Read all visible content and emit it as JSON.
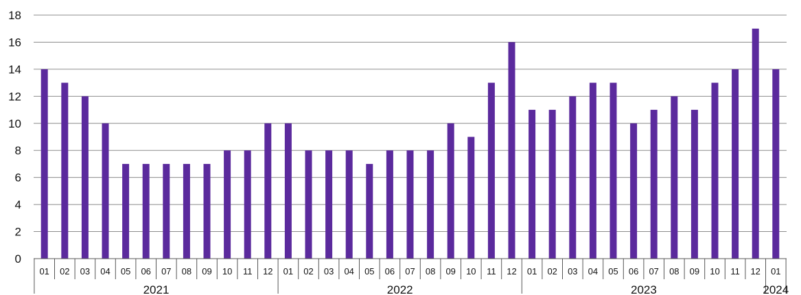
{
  "chart_data": {
    "type": "bar",
    "title": "",
    "xlabel": "",
    "ylabel": "",
    "ylim": [
      0,
      18
    ],
    "yticks": [
      0,
      2,
      4,
      6,
      8,
      10,
      12,
      14,
      16,
      18
    ],
    "grid": "horizontal",
    "legend": "none",
    "colors": {
      "bar": "#5b2a9d",
      "grid": "#8c8c8c",
      "axis": "#555555"
    },
    "x": [
      {
        "year": "2021",
        "month": "01",
        "value": 14
      },
      {
        "year": "2021",
        "month": "02",
        "value": 13
      },
      {
        "year": "2021",
        "month": "03",
        "value": 12
      },
      {
        "year": "2021",
        "month": "04",
        "value": 10
      },
      {
        "year": "2021",
        "month": "05",
        "value": 7
      },
      {
        "year": "2021",
        "month": "06",
        "value": 7
      },
      {
        "year": "2021",
        "month": "07",
        "value": 7
      },
      {
        "year": "2021",
        "month": "08",
        "value": 7
      },
      {
        "year": "2021",
        "month": "09",
        "value": 7
      },
      {
        "year": "2021",
        "month": "10",
        "value": 8
      },
      {
        "year": "2021",
        "month": "11",
        "value": 8
      },
      {
        "year": "2021",
        "month": "12",
        "value": 10
      },
      {
        "year": "2022",
        "month": "01",
        "value": 10
      },
      {
        "year": "2022",
        "month": "02",
        "value": 8
      },
      {
        "year": "2022",
        "month": "03",
        "value": 8
      },
      {
        "year": "2022",
        "month": "04",
        "value": 8
      },
      {
        "year": "2022",
        "month": "05",
        "value": 7
      },
      {
        "year": "2022",
        "month": "06",
        "value": 8
      },
      {
        "year": "2022",
        "month": "07",
        "value": 8
      },
      {
        "year": "2022",
        "month": "08",
        "value": 8
      },
      {
        "year": "2022",
        "month": "09",
        "value": 10
      },
      {
        "year": "2022",
        "month": "10",
        "value": 9
      },
      {
        "year": "2022",
        "month": "11",
        "value": 13
      },
      {
        "year": "2022",
        "month": "12",
        "value": 16
      },
      {
        "year": "2023",
        "month": "01",
        "value": 11
      },
      {
        "year": "2023",
        "month": "02",
        "value": 11
      },
      {
        "year": "2023",
        "month": "03",
        "value": 12
      },
      {
        "year": "2023",
        "month": "04",
        "value": 13
      },
      {
        "year": "2023",
        "month": "05",
        "value": 13
      },
      {
        "year": "2023",
        "month": "06",
        "value": 10
      },
      {
        "year": "2023",
        "month": "07",
        "value": 11
      },
      {
        "year": "2023",
        "month": "08",
        "value": 12
      },
      {
        "year": "2023",
        "month": "09",
        "value": 11
      },
      {
        "year": "2023",
        "month": "10",
        "value": 13
      },
      {
        "year": "2023",
        "month": "11",
        "value": 14
      },
      {
        "year": "2023",
        "month": "12",
        "value": 17
      },
      {
        "year": "2024",
        "month": "01",
        "value": 14
      }
    ],
    "years": [
      "2021",
      "2022",
      "2023",
      "2024"
    ]
  }
}
